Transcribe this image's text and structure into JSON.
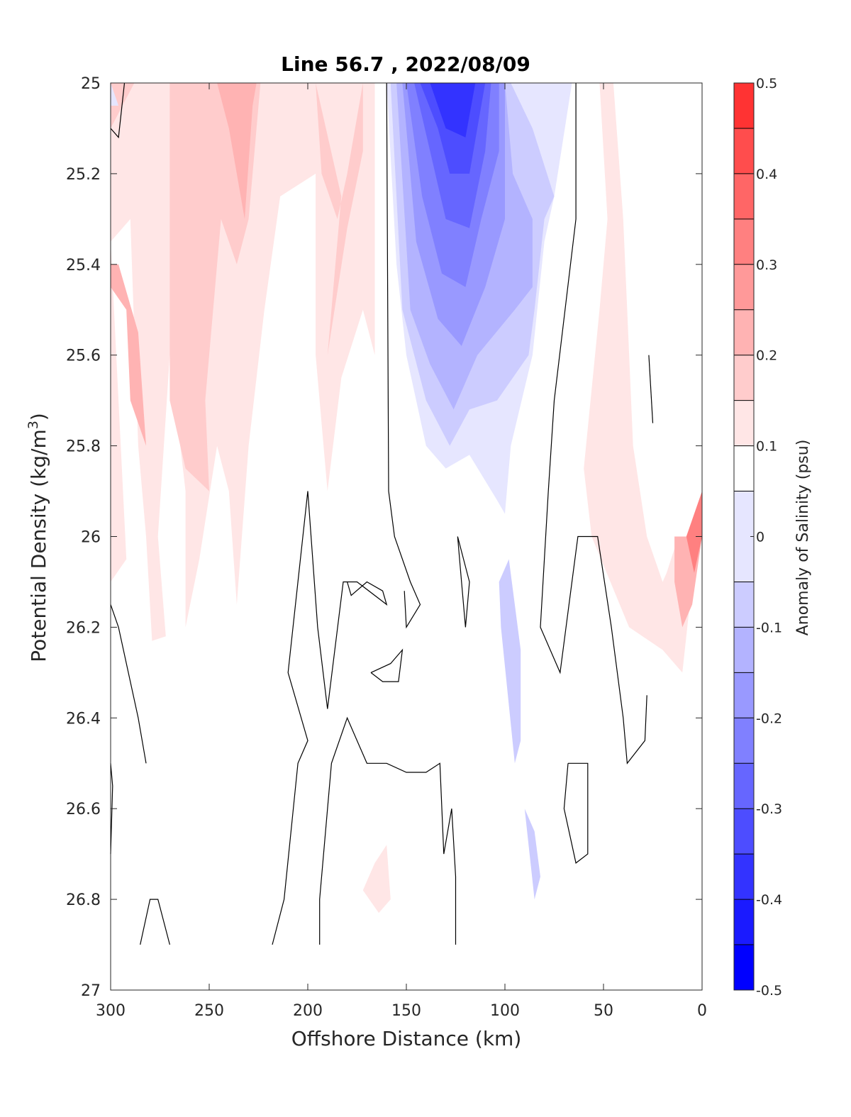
{
  "chart_data": {
    "type": "contour",
    "title": "Line 56.7 , 2022/08/09",
    "xlabel": "Offshore Distance (km)",
    "ylabel": "Potential Density (kg/m",
    "ylabel_sup": "3",
    "ylabel_close": ")",
    "xlim": [
      300,
      0
    ],
    "ylim": [
      25,
      27
    ],
    "x_ticks": [
      300,
      250,
      200,
      150,
      100,
      50,
      0
    ],
    "x_tick_labels": [
      "300",
      "250",
      "200",
      "150",
      "100",
      "50",
      "0"
    ],
    "y_ticks": [
      25,
      25.2,
      25.4,
      25.6,
      25.8,
      26,
      26.2,
      26.4,
      26.6,
      26.8,
      27
    ],
    "y_tick_labels": [
      "25",
      "25.2",
      "25.4",
      "25.6",
      "25.8",
      "26",
      "26.2",
      "26.4",
      "26.6",
      "26.8",
      "27"
    ],
    "colorbar": {
      "label": "Anomaly of Salinity (psu)",
      "range": [
        -0.5,
        0.5
      ],
      "ticks": [
        0.5,
        0.4,
        0.3,
        0.2,
        0.1,
        0,
        -0.1,
        -0.2,
        -0.3,
        -0.4,
        -0.5
      ],
      "tick_labels": [
        "0.5",
        "0.4",
        "0.3",
        "0.2",
        "0.1",
        "0",
        "-0.1",
        "-0.2",
        "-0.3",
        "-0.4",
        "-0.5"
      ],
      "levels": [
        -0.5,
        -0.45,
        -0.4,
        -0.35,
        -0.3,
        -0.25,
        -0.2,
        -0.15,
        -0.1,
        -0.05,
        0.05,
        0.1,
        0.15,
        0.2,
        0.25,
        0.3,
        0.35,
        0.4,
        0.45,
        0.5
      ],
      "band_colors": [
        "#0000ff",
        "#1a1aff",
        "#3333ff",
        "#4d4dff",
        "#6666ff",
        "#8080ff",
        "#9999ff",
        "#b3b3ff",
        "#ccccff",
        "#e6e6ff",
        "#ffffff",
        "#ffe6e6",
        "#ffcccc",
        "#ffb3b3",
        "#ff9999",
        "#ff8080",
        "#ff6666",
        "#ff4d4d",
        "#ff3333",
        "#ff1a1a"
      ]
    },
    "filled_regions": [
      {
        "value": 0.1,
        "points": [
          [
            300,
            25.0
          ],
          [
            296,
            25.0
          ],
          [
            294,
            25.3
          ],
          [
            300,
            25.35
          ]
        ]
      },
      {
        "value": 0.1,
        "points": [
          [
            300,
            25.35
          ],
          [
            290,
            25.3
          ],
          [
            286,
            25.8
          ],
          [
            282,
            26.0
          ],
          [
            279,
            26.23
          ],
          [
            272,
            26.22
          ],
          [
            276,
            26.0
          ],
          [
            270,
            25.6
          ],
          [
            262,
            25.9
          ],
          [
            262,
            26.2
          ],
          [
            255,
            26.05
          ],
          [
            246,
            25.8
          ],
          [
            240,
            25.9
          ],
          [
            236,
            26.15
          ],
          [
            230,
            25.8
          ],
          [
            222,
            25.5
          ],
          [
            214,
            25.25
          ],
          [
            196,
            25.2
          ],
          [
            196,
            25.6
          ],
          [
            190,
            25.9
          ],
          [
            183,
            25.65
          ],
          [
            172,
            25.5
          ],
          [
            166,
            25.6
          ],
          [
            166,
            25.0
          ],
          [
            300,
            25.0
          ],
          [
            300,
            26.1
          ],
          [
            292,
            26.05
          ]
        ]
      },
      {
        "value": 0.15,
        "points": [
          [
            300,
            25.1
          ],
          [
            288,
            25.0
          ],
          [
            270,
            25.0
          ],
          [
            270,
            25.7
          ],
          [
            262,
            25.85
          ],
          [
            250,
            25.9
          ],
          [
            252,
            25.7
          ],
          [
            244,
            25.3
          ],
          [
            236,
            25.4
          ],
          [
            230,
            25.3
          ],
          [
            224,
            25.0
          ],
          [
            196,
            25.0
          ],
          [
            193,
            25.2
          ],
          [
            185,
            25.3
          ],
          [
            180,
            25.2
          ],
          [
            172,
            25.0
          ],
          [
            172,
            25.15
          ],
          [
            180,
            25.32
          ],
          [
            190,
            25.6
          ],
          [
            183,
            25.25
          ],
          [
            196,
            25.0
          ],
          [
            300,
            25.0
          ]
        ]
      },
      {
        "value": 0.2,
        "points": [
          [
            300,
            25.45
          ],
          [
            292,
            25.5
          ],
          [
            290,
            25.7
          ],
          [
            282,
            25.8
          ],
          [
            286,
            25.55
          ],
          [
            296,
            25.4
          ],
          [
            300,
            25.4
          ]
        ]
      },
      {
        "value": 0.2,
        "points": [
          [
            246,
            25.0
          ],
          [
            240,
            25.1
          ],
          [
            232,
            25.3
          ],
          [
            228,
            25.05
          ],
          [
            226,
            25.0
          ]
        ]
      },
      {
        "value": 0.1,
        "points": [
          [
            166,
            26.72
          ],
          [
            160,
            26.68
          ],
          [
            158,
            26.8
          ],
          [
            164,
            26.83
          ],
          [
            172,
            26.78
          ]
        ]
      },
      {
        "value": 0.1,
        "points": [
          [
            52,
            25.0
          ],
          [
            48,
            25.3
          ],
          [
            52,
            25.5
          ],
          [
            60,
            25.85
          ],
          [
            56,
            26.0
          ],
          [
            37,
            26.2
          ],
          [
            20,
            26.25
          ],
          [
            10,
            26.3
          ],
          [
            5,
            26.1
          ],
          [
            0,
            25.95
          ],
          [
            0,
            26.0
          ],
          [
            12,
            26.0
          ],
          [
            18,
            26.08
          ],
          [
            20,
            26.1
          ],
          [
            24,
            26.05
          ],
          [
            28,
            26.0
          ],
          [
            35,
            25.8
          ],
          [
            38,
            25.5
          ],
          [
            40,
            25.3
          ],
          [
            45,
            25.0
          ]
        ]
      },
      {
        "value": 0.2,
        "points": [
          [
            14,
            26.0
          ],
          [
            0,
            26.0
          ],
          [
            5,
            26.15
          ],
          [
            10,
            26.2
          ],
          [
            14,
            26.1
          ]
        ]
      },
      {
        "value": 0.3,
        "points": [
          [
            8,
            26.0
          ],
          [
            0,
            25.9
          ],
          [
            0,
            26.0
          ],
          [
            4,
            26.08
          ]
        ]
      },
      {
        "value": -0.05,
        "points": [
          [
            300,
            25.0
          ],
          [
            296,
            25.05
          ],
          [
            300,
            25.05
          ]
        ]
      },
      {
        "value": -0.05,
        "points": [
          [
            160,
            25.0
          ],
          [
            155,
            25.4
          ],
          [
            150,
            25.6
          ],
          [
            140,
            25.8
          ],
          [
            130,
            25.85
          ],
          [
            118,
            25.82
          ],
          [
            104,
            25.92
          ],
          [
            100,
            25.95
          ],
          [
            97,
            25.8
          ],
          [
            86,
            25.6
          ],
          [
            80,
            25.35
          ],
          [
            75,
            25.25
          ],
          [
            66,
            25.0
          ],
          [
            100,
            25.0
          ]
        ]
      },
      {
        "value": -0.1,
        "points": [
          [
            158,
            25.0
          ],
          [
            152,
            25.5
          ],
          [
            140,
            25.7
          ],
          [
            128,
            25.8
          ],
          [
            118,
            25.72
          ],
          [
            104,
            25.7
          ],
          [
            88,
            25.6
          ],
          [
            85,
            25.5
          ],
          [
            80,
            25.3
          ],
          [
            75,
            25.25
          ],
          [
            86,
            25.1
          ],
          [
            97,
            25.0
          ]
        ]
      },
      {
        "value": -0.15,
        "points": [
          [
            155,
            25.0
          ],
          [
            148,
            25.5
          ],
          [
            138,
            25.62
          ],
          [
            126,
            25.72
          ],
          [
            114,
            25.6
          ],
          [
            95,
            25.5
          ],
          [
            86,
            25.45
          ],
          [
            86,
            25.3
          ],
          [
            96,
            25.2
          ],
          [
            100,
            25.0
          ]
        ]
      },
      {
        "value": -0.2,
        "points": [
          [
            152,
            25.0
          ],
          [
            145,
            25.35
          ],
          [
            134,
            25.52
          ],
          [
            122,
            25.58
          ],
          [
            110,
            25.45
          ],
          [
            100,
            25.3
          ],
          [
            100,
            25.0
          ]
        ]
      },
      {
        "value": -0.25,
        "points": [
          [
            150,
            25.0
          ],
          [
            142,
            25.25
          ],
          [
            132,
            25.42
          ],
          [
            120,
            25.45
          ],
          [
            112,
            25.3
          ],
          [
            103,
            25.15
          ],
          [
            103,
            25.0
          ]
        ]
      },
      {
        "value": -0.3,
        "points": [
          [
            146,
            25.0
          ],
          [
            138,
            25.15
          ],
          [
            130,
            25.3
          ],
          [
            118,
            25.32
          ],
          [
            110,
            25.15
          ],
          [
            107,
            25.0
          ]
        ]
      },
      {
        "value": -0.35,
        "points": [
          [
            143,
            25.0
          ],
          [
            134,
            25.1
          ],
          [
            128,
            25.2
          ],
          [
            118,
            25.2
          ],
          [
            112,
            25.05
          ],
          [
            110,
            25.0
          ]
        ]
      },
      {
        "value": -0.4,
        "points": [
          [
            138,
            25.0
          ],
          [
            130,
            25.1
          ],
          [
            120,
            25.12
          ],
          [
            115,
            25.0
          ]
        ]
      },
      {
        "value": -0.1,
        "points": [
          [
            102,
            26.2
          ],
          [
            95,
            26.5
          ],
          [
            92,
            26.45
          ],
          [
            92,
            26.25
          ],
          [
            98,
            26.05
          ],
          [
            103,
            26.1
          ]
        ]
      },
      {
        "value": -0.1,
        "points": [
          [
            90,
            26.6
          ],
          [
            85,
            26.8
          ],
          [
            82,
            26.75
          ],
          [
            85,
            26.65
          ]
        ]
      }
    ],
    "zero_contours": [
      [
        [
          300,
          25.1
        ],
        [
          296,
          25.12
        ],
        [
          293,
          25.0
        ]
      ],
      [
        [
          160,
          25.0
        ],
        [
          159,
          25.9
        ],
        [
          156,
          26.0
        ],
        [
          148,
          26.1
        ],
        [
          143,
          26.15
        ],
        [
          150,
          26.2
        ],
        [
          151,
          26.12
        ]
      ],
      [
        [
          64,
          25.0
        ],
        [
          64,
          25.3
        ],
        [
          75,
          25.7
        ],
        [
          78,
          25.9
        ],
        [
          80,
          26.05
        ],
        [
          82,
          26.2
        ],
        [
          72,
          26.3
        ],
        [
          66,
          26.1
        ],
        [
          63,
          26.0
        ],
        [
          53,
          26.0
        ],
        [
          46,
          26.2
        ],
        [
          40,
          26.4
        ],
        [
          38,
          26.5
        ],
        [
          29,
          26.45
        ],
        [
          28,
          26.35
        ]
      ],
      [
        [
          27,
          25.6
        ],
        [
          25,
          25.75
        ]
      ],
      [
        [
          300,
          26.15
        ],
        [
          296,
          26.2
        ],
        [
          291,
          26.3
        ],
        [
          286,
          26.4
        ],
        [
          282,
          26.5
        ]
      ],
      [
        [
          300,
          26.7
        ],
        [
          299,
          26.55
        ],
        [
          300,
          26.5
        ]
      ],
      [
        [
          285,
          26.9
        ],
        [
          280,
          26.8
        ],
        [
          276,
          26.8
        ],
        [
          270,
          26.9
        ]
      ],
      [
        [
          218,
          26.9
        ],
        [
          212,
          26.8
        ],
        [
          205,
          26.5
        ],
        [
          200,
          26.45
        ],
        [
          210,
          26.3
        ],
        [
          205,
          26.1
        ],
        [
          200,
          25.9
        ],
        [
          195,
          26.2
        ],
        [
          190,
          26.38
        ],
        [
          182,
          26.1
        ],
        [
          175,
          26.1
        ],
        [
          160,
          26.15
        ],
        [
          162,
          26.12
        ],
        [
          170,
          26.1
        ],
        [
          178,
          26.13
        ],
        [
          180,
          26.1
        ]
      ],
      [
        [
          194,
          26.9
        ],
        [
          194,
          26.8
        ],
        [
          193,
          26.75
        ],
        [
          188,
          26.5
        ],
        [
          180,
          26.4
        ],
        [
          170,
          26.5
        ],
        [
          160,
          26.5
        ],
        [
          150,
          26.52
        ],
        [
          140,
          26.52
        ],
        [
          133,
          26.5
        ],
        [
          131,
          26.7
        ],
        [
          127,
          26.6
        ],
        [
          125,
          26.75
        ],
        [
          125,
          26.9
        ]
      ],
      [
        [
          168,
          26.3
        ],
        [
          158,
          26.28
        ],
        [
          152,
          26.25
        ],
        [
          154,
          26.32
        ],
        [
          162,
          26.32
        ],
        [
          168,
          26.3
        ]
      ],
      [
        [
          124,
          26.0
        ],
        [
          118,
          26.1
        ],
        [
          120,
          26.2
        ],
        [
          122,
          26.1
        ],
        [
          124,
          26.0
        ]
      ],
      [
        [
          68,
          26.5
        ],
        [
          70,
          26.6
        ],
        [
          64,
          26.72
        ],
        [
          58,
          26.7
        ],
        [
          58,
          26.5
        ],
        [
          68,
          26.5
        ]
      ]
    ]
  }
}
